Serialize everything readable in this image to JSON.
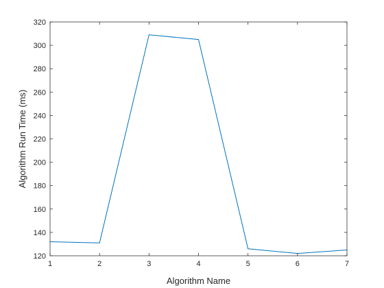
{
  "chart_data": {
    "type": "line",
    "title": "",
    "xlabel": "Algorithm Name",
    "ylabel": "Algorithm Run Time (ms)",
    "xlim": [
      1,
      7
    ],
    "ylim": [
      120,
      320
    ],
    "xticks": [
      1,
      2,
      3,
      4,
      5,
      6,
      7
    ],
    "yticks": [
      120,
      140,
      160,
      180,
      200,
      220,
      240,
      260,
      280,
      300,
      320
    ],
    "grid": false,
    "series": [
      {
        "color": "#0072bd",
        "x": [
          1,
          2,
          3,
          4,
          5,
          6,
          7
        ],
        "y": [
          132,
          131,
          309,
          305,
          126,
          122,
          125
        ]
      }
    ]
  }
}
